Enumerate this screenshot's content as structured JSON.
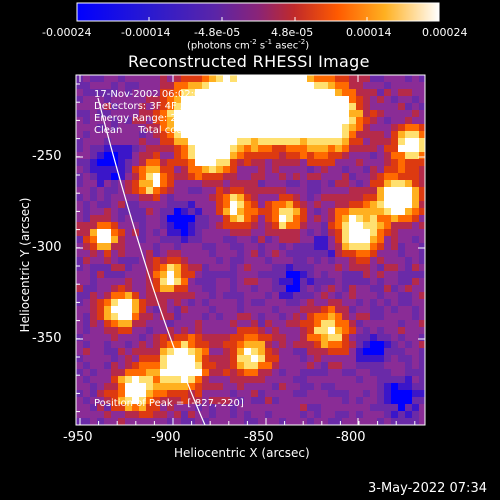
{
  "colorbar": {
    "ticks": [
      "-0.00024",
      "-0.00014",
      "-4.8e-05",
      "4.8e-05",
      "0.00014",
      "0.00024"
    ],
    "units_prefix": "(photons cm",
    "units_sup1": "-2",
    "units_mid1": " s",
    "units_sup2": "-1",
    "units_mid2": " asec",
    "units_sup3": "-2",
    "units_suffix": ")"
  },
  "plot": {
    "title": "Reconstructed RHESSI Image",
    "info_time": "17-Nov-2002 06:02:08.000 to 06:06:28.000",
    "info_detectors": "Detectors: 3F 4F 5F 6F 7F 8F, All 0",
    "info_energy": "Energy Range: 25.0 - 50.0 keV",
    "info_clean": "Clean     Total counts: 2343/1008",
    "peak_label": "Position of Peak = [-827,-220]",
    "x_axis_title": "Heliocentric X (arcsec)",
    "y_axis_title": "Heliocentric Y (arcsec)",
    "x_ticks": [
      "-950",
      "-900",
      "-850",
      "-800"
    ],
    "y_ticks": [
      "-250",
      "-300",
      "-350"
    ]
  },
  "footer": {
    "timestamp": "3-May-2022 07:34"
  },
  "colors": {
    "background": "#000000",
    "colormap": [
      "#0000ff",
      "#3b16c9",
      "#6a2aa8",
      "#8a2c96",
      "#b52a4a",
      "#dd3a10",
      "#ff6a00",
      "#ffb020",
      "#ffe070",
      "#ffffff"
    ]
  }
}
